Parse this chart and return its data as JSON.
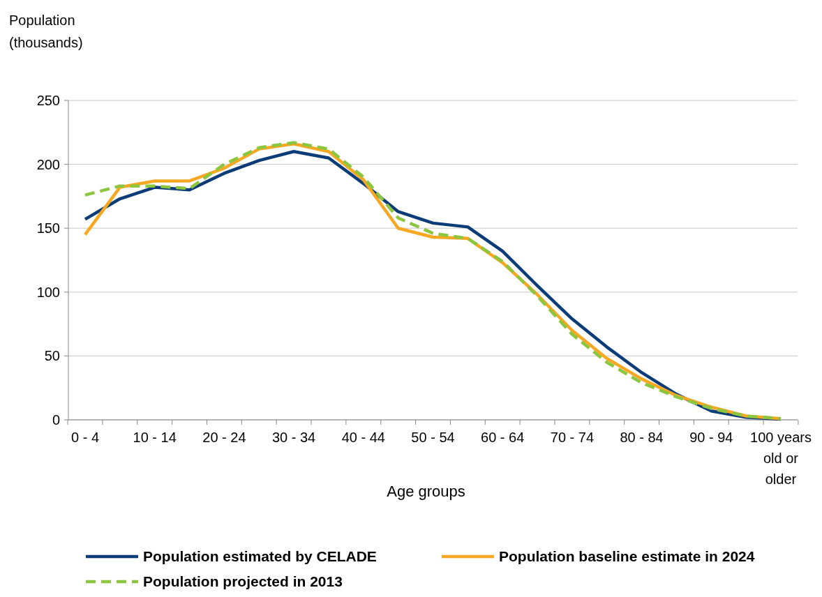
{
  "chart_data": {
    "type": "line",
    "ylabel": "Population (thousands)",
    "xlabel": "Age groups",
    "categories": [
      "0 - 4",
      null,
      "10 - 14",
      null,
      "20 - 24",
      null,
      "30 - 34",
      null,
      "40 - 44",
      null,
      "50 - 54",
      null,
      "60 - 64",
      null,
      "70 - 74",
      null,
      "80 - 84",
      null,
      "90 - 94",
      null,
      "100 years old or older"
    ],
    "series": [
      {
        "name": "Population estimated by CELADE",
        "color": "#0b3c78",
        "line_style": "solid",
        "values": [
          157,
          173,
          182,
          180,
          193,
          203,
          210,
          205,
          185,
          163,
          154,
          151,
          132,
          105,
          79,
          57,
          37,
          20,
          7,
          2,
          0.5
        ]
      },
      {
        "name": "Population baseline estimate in 2024",
        "color": "#f7a823",
        "line_style": "solid",
        "values": [
          145,
          182,
          187,
          187,
          197,
          212,
          216,
          210,
          188,
          150,
          143,
          142,
          123,
          98,
          70,
          48,
          32,
          19,
          10,
          3,
          1
        ]
      },
      {
        "name": "Population projected in 2013",
        "color": "#8cc63f",
        "line_style": "dashed",
        "values": [
          176,
          183,
          183,
          181,
          200,
          213,
          217,
          212,
          190,
          158,
          146,
          142,
          124,
          97,
          67,
          45,
          29,
          18,
          9,
          3,
          1
        ]
      }
    ],
    "ylim": [
      0,
      250
    ],
    "yticks": [
      0,
      50,
      100,
      150,
      200,
      250
    ],
    "grid": "y",
    "legend": "bottom"
  }
}
